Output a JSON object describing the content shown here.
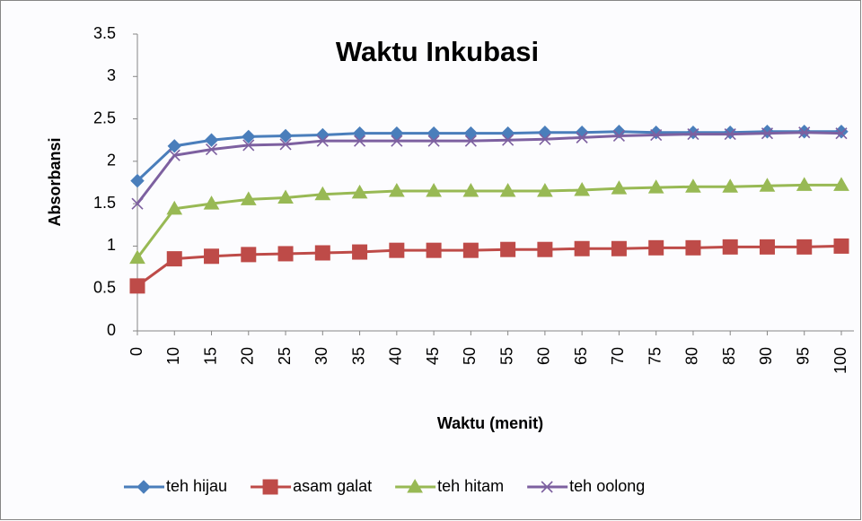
{
  "chart_data": {
    "type": "line",
    "title": "Waktu Inkubasi",
    "x_label": "Waktu (menit)",
    "y_label": "Absorbansi",
    "categories": [
      "0",
      "10",
      "15",
      "20",
      "25",
      "30",
      "35",
      "40",
      "45",
      "50",
      "55",
      "60",
      "65",
      "70",
      "75",
      "80",
      "85",
      "90",
      "95",
      "100"
    ],
    "series": [
      {
        "name": "teh hijau",
        "color": "#4a7ebb",
        "marker": "diamond",
        "values": [
          1.77,
          2.18,
          2.25,
          2.29,
          2.3,
          2.31,
          2.33,
          2.33,
          2.33,
          2.33,
          2.33,
          2.34,
          2.34,
          2.35,
          2.34,
          2.34,
          2.34,
          2.35,
          2.35,
          2.35
        ]
      },
      {
        "name": "asam galat",
        "color": "#be4b48",
        "marker": "square",
        "values": [
          0.53,
          0.85,
          0.88,
          0.9,
          0.91,
          0.92,
          0.93,
          0.95,
          0.95,
          0.95,
          0.96,
          0.96,
          0.97,
          0.97,
          0.98,
          0.98,
          0.99,
          0.99,
          0.99,
          1.0
        ]
      },
      {
        "name": "teh hitam",
        "color": "#98b954",
        "marker": "triangle",
        "values": [
          0.86,
          1.44,
          1.5,
          1.55,
          1.57,
          1.61,
          1.63,
          1.65,
          1.65,
          1.65,
          1.65,
          1.65,
          1.66,
          1.68,
          1.69,
          1.7,
          1.7,
          1.71,
          1.72,
          1.72
        ]
      },
      {
        "name": "teh oolong",
        "color": "#7d60a0",
        "marker": "x",
        "values": [
          1.5,
          2.07,
          2.14,
          2.19,
          2.2,
          2.24,
          2.24,
          2.24,
          2.24,
          2.24,
          2.25,
          2.26,
          2.28,
          2.3,
          2.31,
          2.32,
          2.32,
          2.33,
          2.34,
          2.33
        ]
      }
    ],
    "ylim": [
      0,
      3.5
    ],
    "yticks": [
      0,
      0.5,
      1,
      1.5,
      2,
      2.5,
      3,
      3.5
    ],
    "grid": false,
    "legend": "bottom"
  }
}
